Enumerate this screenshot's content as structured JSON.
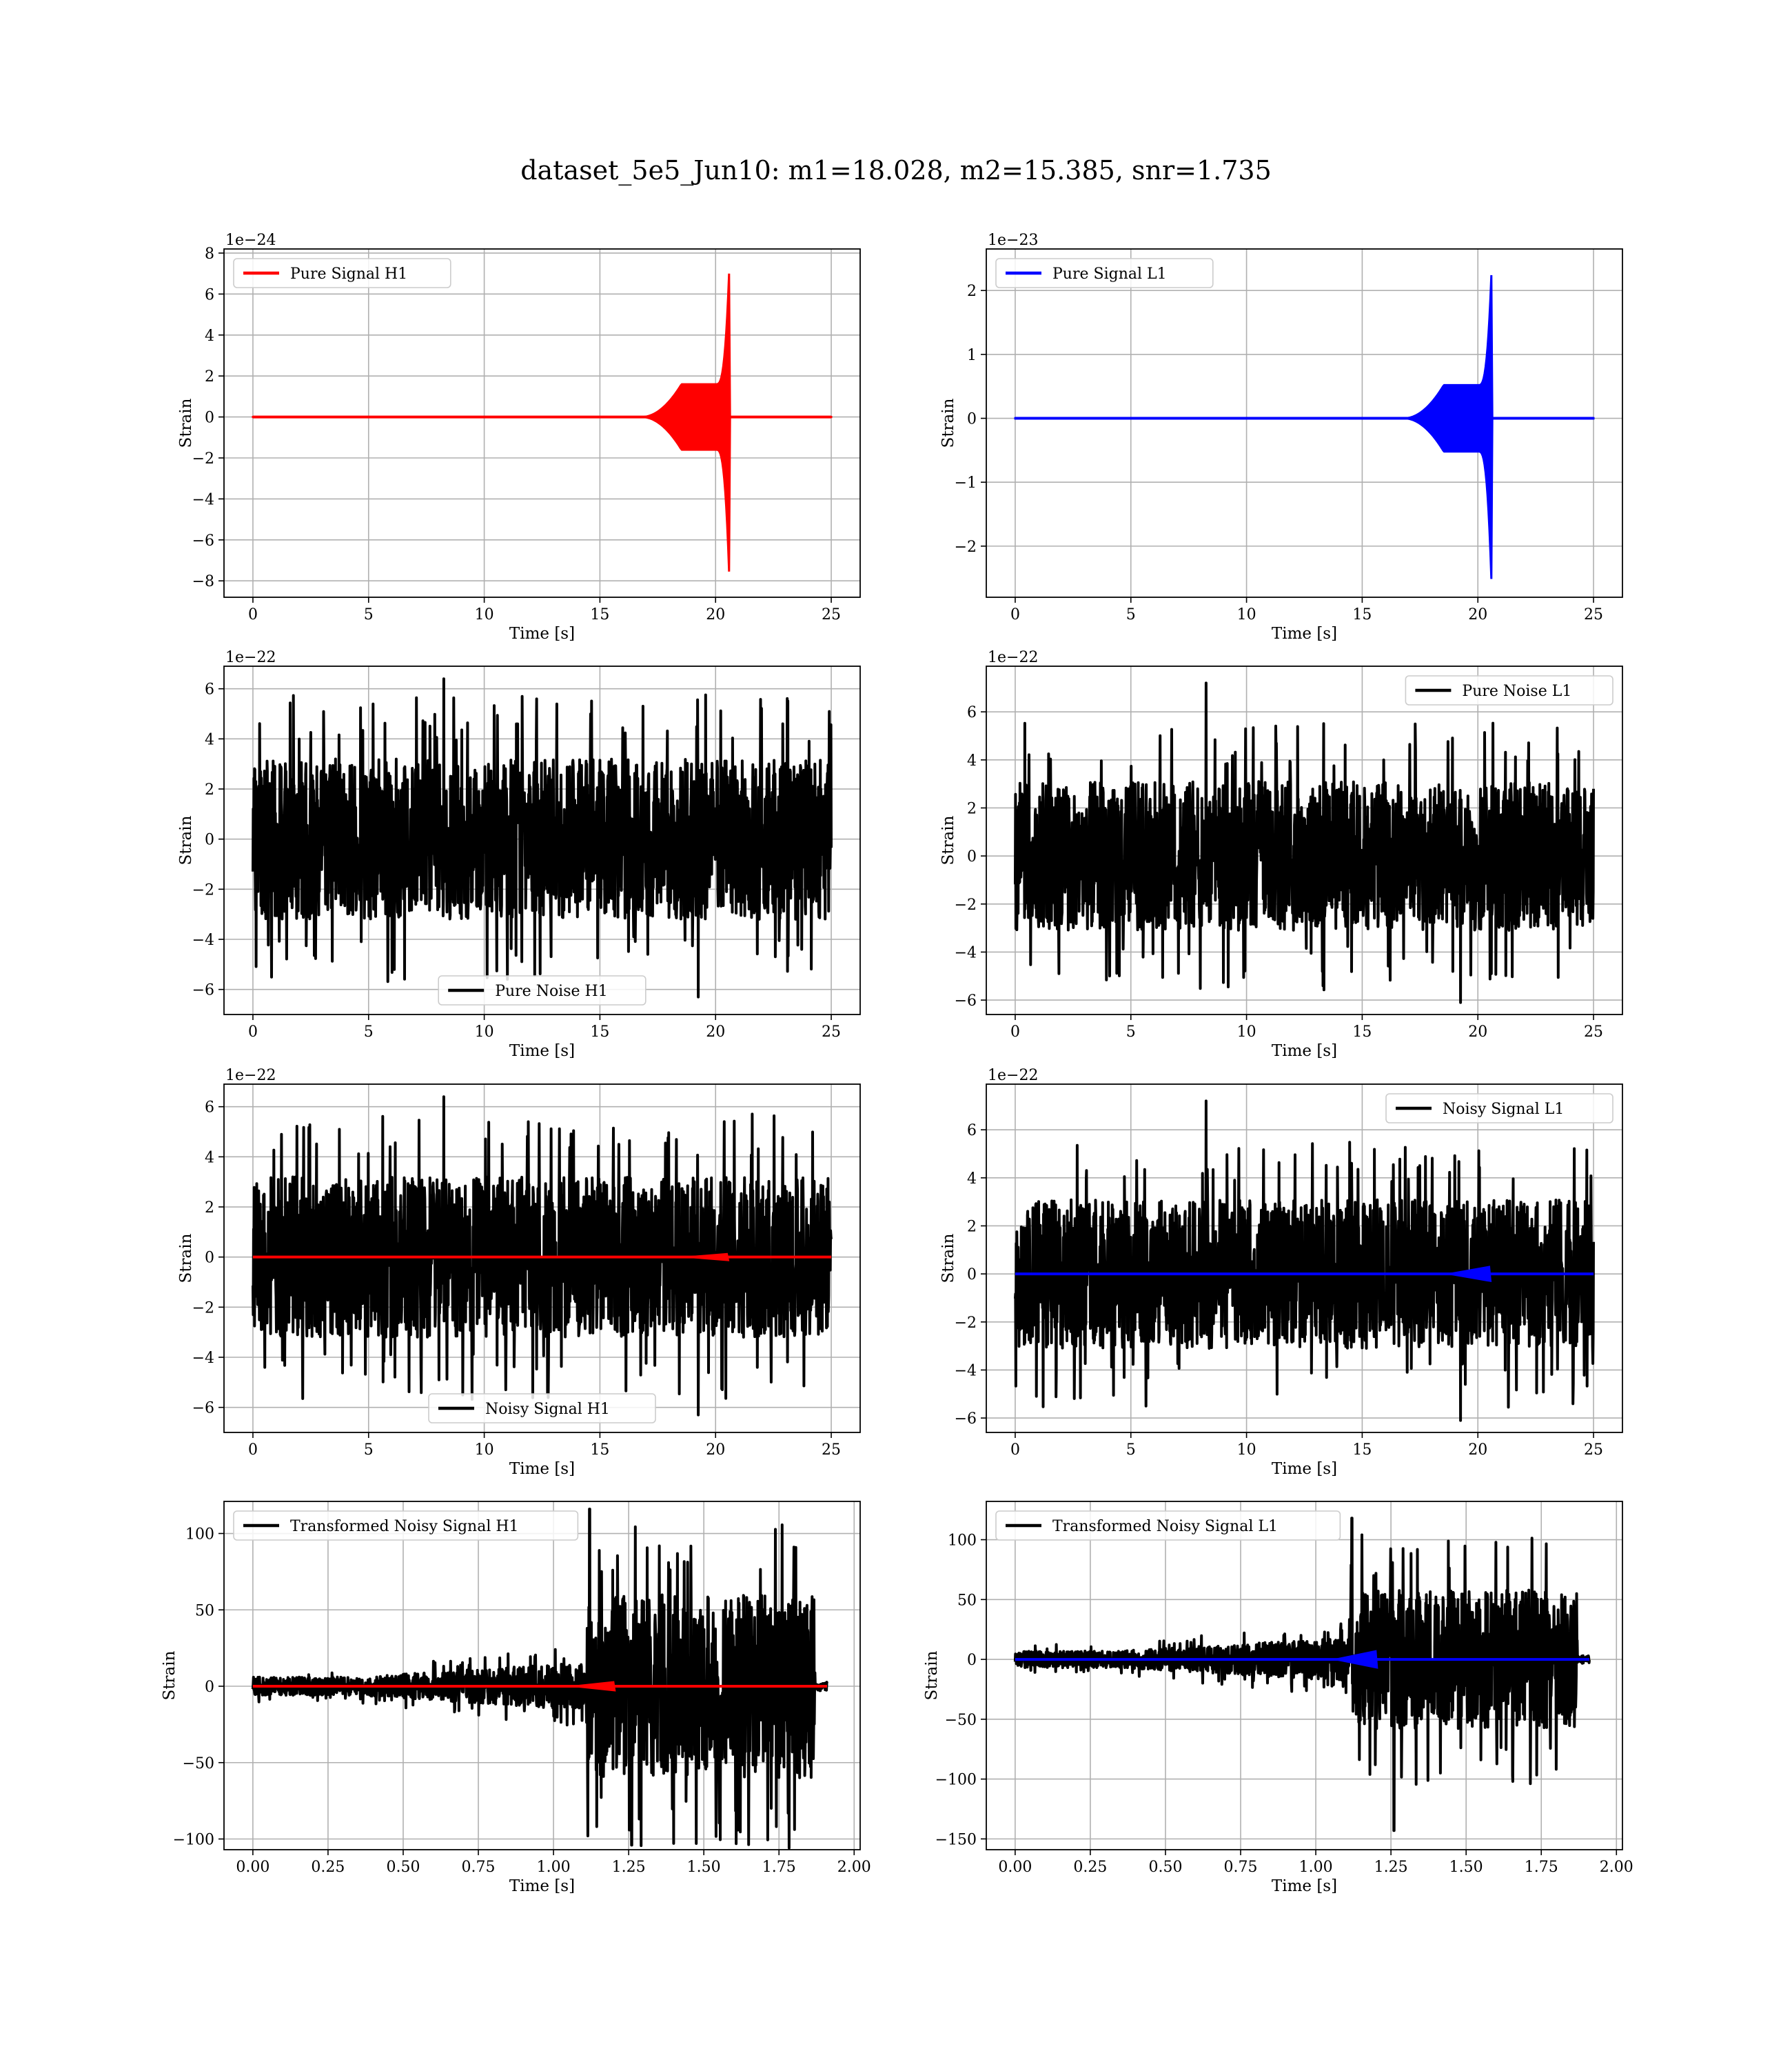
{
  "figure": {
    "title": "dataset_5e5_Jun10: m1=18.028, m2=15.385, snr=1.735"
  },
  "chart_data": [
    {
      "type": "line",
      "panel": "pure-signal-h1",
      "legend": [
        "Pure Signal H1"
      ],
      "legend_loc": "upper left",
      "xlabel": "Time [s]",
      "ylabel": "Strain",
      "offset_text": "1e−24",
      "xlim": [
        -1.25,
        26.25
      ],
      "ylim": [
        -8.8,
        8.2
      ],
      "xticks": [
        0,
        5,
        10,
        15,
        20,
        25
      ],
      "xtick_labels": [
        "0",
        "5",
        "10",
        "15",
        "20",
        "25"
      ],
      "yticks": [
        -8,
        -6,
        -4,
        -2,
        0,
        2,
        4,
        6,
        8
      ],
      "ytick_labels": [
        "−8",
        "−6",
        "−4",
        "−2",
        "0",
        "2",
        "4",
        "6",
        "8"
      ],
      "grid": true,
      "series": [
        {
          "name": "Pure Signal H1",
          "color": "#ff0000",
          "kind": "chirp",
          "x_start": 0,
          "x_end": 25,
          "t_merger": 20.6,
          "t_rise": 16.8,
          "plateau_amplitude": 1.6,
          "peak_max": 7.5,
          "peak_min": -8.1
        }
      ]
    },
    {
      "type": "line",
      "panel": "pure-signal-l1",
      "legend": [
        "Pure Signal L1"
      ],
      "legend_loc": "upper left",
      "xlabel": "Time [s]",
      "ylabel": "Strain",
      "offset_text": "1e−23",
      "xlim": [
        -1.25,
        26.25
      ],
      "ylim": [
        -2.8,
        2.65
      ],
      "xticks": [
        0,
        5,
        10,
        15,
        20,
        25
      ],
      "xtick_labels": [
        "0",
        "5",
        "10",
        "15",
        "20",
        "25"
      ],
      "yticks": [
        -2,
        -1,
        0,
        1,
        2
      ],
      "ytick_labels": [
        "−2",
        "−1",
        "0",
        "1",
        "2"
      ],
      "grid": true,
      "series": [
        {
          "name": "Pure Signal L1",
          "color": "#0000ff",
          "kind": "chirp",
          "x_start": 0,
          "x_end": 25,
          "t_merger": 20.6,
          "t_rise": 16.8,
          "plateau_amplitude": 0.52,
          "peak_max": 2.4,
          "peak_min": -2.7
        }
      ]
    },
    {
      "type": "line",
      "panel": "pure-noise-h1",
      "legend": [
        "Pure Noise H1"
      ],
      "legend_loc": "lower center",
      "xlabel": "Time [s]",
      "ylabel": "Strain",
      "offset_text": "1e−22",
      "xlim": [
        -1.25,
        26.25
      ],
      "ylim": [
        -7.0,
        6.9
      ],
      "xticks": [
        0,
        5,
        10,
        15,
        20,
        25
      ],
      "xtick_labels": [
        "0",
        "5",
        "10",
        "15",
        "20",
        "25"
      ],
      "yticks": [
        -6,
        -4,
        -2,
        0,
        2,
        4,
        6
      ],
      "ytick_labels": [
        "−6",
        "−4",
        "−2",
        "0",
        "2",
        "4",
        "6"
      ],
      "grid": true,
      "series": [
        {
          "name": "Pure Noise H1",
          "color": "#000000",
          "kind": "noise",
          "x_start": 0,
          "x_end": 25,
          "band": 3.2,
          "max": 6.4,
          "min": -6.3
        }
      ]
    },
    {
      "type": "line",
      "panel": "pure-noise-l1",
      "legend": [
        "Pure Noise L1"
      ],
      "legend_loc": "upper right",
      "xlabel": "Time [s]",
      "ylabel": "Strain",
      "offset_text": "1e−22",
      "xlim": [
        -1.25,
        26.25
      ],
      "ylim": [
        -6.6,
        7.9
      ],
      "xticks": [
        0,
        5,
        10,
        15,
        20,
        25
      ],
      "xtick_labels": [
        "0",
        "5",
        "10",
        "15",
        "20",
        "25"
      ],
      "yticks": [
        -6,
        -4,
        -2,
        0,
        2,
        4,
        6
      ],
      "ytick_labels": [
        "−6",
        "−4",
        "−2",
        "0",
        "2",
        "4",
        "6"
      ],
      "grid": true,
      "series": [
        {
          "name": "Pure Noise L1",
          "color": "#000000",
          "kind": "noise",
          "x_start": 0,
          "x_end": 25,
          "band": 3.1,
          "max": 7.2,
          "min": -6.1
        }
      ]
    },
    {
      "type": "line",
      "panel": "noisy-signal-h1",
      "legend": [
        "Noisy Signal H1"
      ],
      "legend_loc": "lower center",
      "xlabel": "Time [s]",
      "ylabel": "Strain",
      "offset_text": "1e−22",
      "xlim": [
        -1.25,
        26.25
      ],
      "ylim": [
        -7.0,
        6.9
      ],
      "xticks": [
        0,
        5,
        10,
        15,
        20,
        25
      ],
      "xtick_labels": [
        "0",
        "5",
        "10",
        "15",
        "20",
        "25"
      ],
      "yticks": [
        -6,
        -4,
        -2,
        0,
        2,
        4,
        6
      ],
      "ytick_labels": [
        "−6",
        "−4",
        "−2",
        "0",
        "2",
        "4",
        "6"
      ],
      "grid": true,
      "series": [
        {
          "name": "Noisy Signal H1",
          "color": "#000000",
          "kind": "noise",
          "x_start": 0,
          "x_end": 25,
          "band": 3.2,
          "max": 6.4,
          "min": -6.3
        },
        {
          "name": "",
          "color": "#ff0000",
          "kind": "flat",
          "x_start": 0,
          "x_end": 25,
          "value": 0,
          "bump_at": 20.5,
          "bump": 0.08
        }
      ]
    },
    {
      "type": "line",
      "panel": "noisy-signal-l1",
      "legend": [
        "Noisy Signal L1"
      ],
      "legend_loc": "upper right",
      "xlabel": "Time [s]",
      "ylabel": "Strain",
      "offset_text": "1e−22",
      "xlim": [
        -1.25,
        26.25
      ],
      "ylim": [
        -6.6,
        7.9
      ],
      "xticks": [
        0,
        5,
        10,
        15,
        20,
        25
      ],
      "xtick_labels": [
        "0",
        "5",
        "10",
        "15",
        "20",
        "25"
      ],
      "yticks": [
        -6,
        -4,
        -2,
        0,
        2,
        4,
        6
      ],
      "ytick_labels": [
        "−6",
        "−4",
        "−2",
        "0",
        "2",
        "4",
        "6"
      ],
      "grid": true,
      "series": [
        {
          "name": "Noisy Signal L1",
          "color": "#000000",
          "kind": "noise",
          "x_start": 0,
          "x_end": 25,
          "band": 3.1,
          "max": 7.2,
          "min": -6.1
        },
        {
          "name": "",
          "color": "#0000ff",
          "kind": "flat",
          "x_start": 0,
          "x_end": 25,
          "value": 0,
          "bump_at": 20.5,
          "bump": 0.25
        }
      ]
    },
    {
      "type": "line",
      "panel": "transformed-noisy-signal-h1",
      "legend": [
        "Transformed Noisy Signal H1"
      ],
      "legend_loc": "upper left",
      "xlabel": "Time [s]",
      "ylabel": "Strain",
      "offset_text": "",
      "xlim": [
        -0.096,
        2.02
      ],
      "ylim": [
        -107,
        121
      ],
      "xticks": [
        0,
        0.25,
        0.5,
        0.75,
        1.0,
        1.25,
        1.5,
        1.75,
        2.0
      ],
      "xtick_labels": [
        "0.00",
        "0.25",
        "0.50",
        "0.75",
        "1.00",
        "1.25",
        "1.50",
        "1.75",
        "2.00"
      ],
      "yticks": [
        -100,
        -50,
        0,
        50,
        100
      ],
      "ytick_labels": [
        "−100",
        "−50",
        "0",
        "50",
        "100"
      ],
      "grid": true,
      "series": [
        {
          "name": "Transformed Noisy Signal H1",
          "color": "#000000",
          "kind": "whitened",
          "x_start": 0,
          "x_end": 1.91,
          "t_jump": 1.11,
          "t_end": 1.87,
          "low_band": 6,
          "high_band": 60,
          "max": 116,
          "min": -104
        },
        {
          "name": "",
          "color": "#ff0000",
          "kind": "flat",
          "x_start": 0,
          "x_end": 1.91,
          "value": 0,
          "bump_at": 1.2,
          "bump": 2
        }
      ]
    },
    {
      "type": "line",
      "panel": "transformed-noisy-signal-l1",
      "legend": [
        "Transformed Noisy Signal L1"
      ],
      "legend_loc": "upper left",
      "xlabel": "Time [s]",
      "ylabel": "Strain",
      "offset_text": "",
      "xlim": [
        -0.096,
        2.02
      ],
      "ylim": [
        -159,
        132
      ],
      "xticks": [
        0,
        0.25,
        0.5,
        0.75,
        1.0,
        1.25,
        1.5,
        1.75,
        2.0
      ],
      "xtick_labels": [
        "0.00",
        "0.25",
        "0.50",
        "0.75",
        "1.00",
        "1.25",
        "1.50",
        "1.75",
        "2.00"
      ],
      "yticks": [
        -150,
        -100,
        -50,
        0,
        50,
        100
      ],
      "ytick_labels": [
        "−150",
        "−100",
        "−50",
        "0",
        "50",
        "100"
      ],
      "grid": true,
      "series": [
        {
          "name": "Transformed Noisy Signal L1",
          "color": "#000000",
          "kind": "whitened",
          "x_start": 0,
          "x_end": 1.91,
          "t_jump": 1.11,
          "t_end": 1.87,
          "low_band": 7,
          "high_band": 58,
          "max": 118,
          "min": -143
        },
        {
          "name": "",
          "color": "#0000ff",
          "kind": "flat",
          "x_start": 0,
          "x_end": 1.91,
          "value": 0,
          "bump_at": 1.2,
          "bump": 6
        }
      ]
    }
  ]
}
